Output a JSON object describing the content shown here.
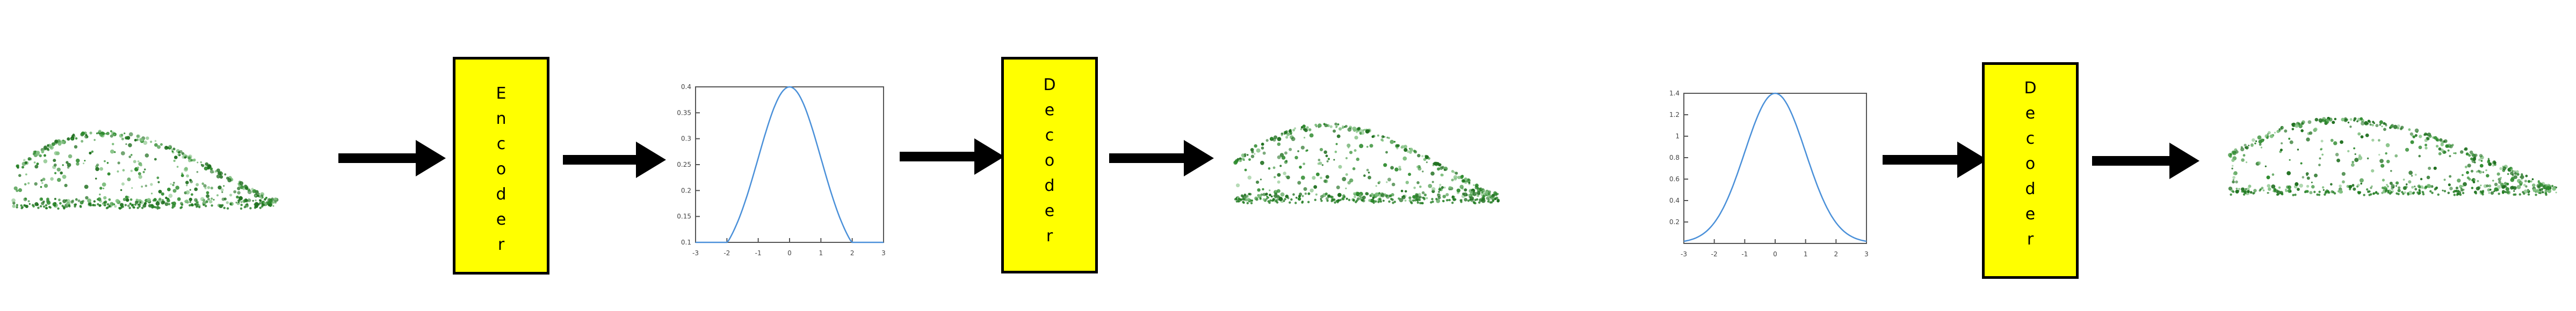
{
  "pipeline": {
    "encoder_label": "Encoder",
    "decoder_label": "Decoder",
    "decoder2_label": "Decoder"
  },
  "colors": {
    "block_fill": "#ffff00",
    "block_border": "#000000",
    "arrow": "#000000",
    "curve": "#4a90d9",
    "points": "#2e8b2e"
  },
  "chart_data": [
    {
      "type": "line",
      "x_ticks": [
        "-3",
        "-2",
        "-1",
        "0",
        "1",
        "2",
        "3"
      ],
      "y_ticks": [
        "0.1",
        "0.15",
        "0.2",
        "0.25",
        "0.3",
        "0.35",
        "0.4"
      ],
      "xlim": [
        -3,
        3
      ],
      "ylim": [
        0.1,
        0.4
      ],
      "mu": 0,
      "sigma": 1,
      "grid": false
    },
    {
      "type": "line",
      "x_ticks": [
        "-3",
        "-2",
        "-1",
        "0",
        "1",
        "2",
        "3"
      ],
      "y_ticks": [
        "0.2",
        "0.4",
        "0.6",
        "0.8",
        "1",
        "1.2",
        "1.4"
      ],
      "xlim": [
        -3,
        3
      ],
      "ylim": [
        0,
        1.4
      ],
      "mu": 0,
      "sigma": 1,
      "grid": false
    }
  ]
}
